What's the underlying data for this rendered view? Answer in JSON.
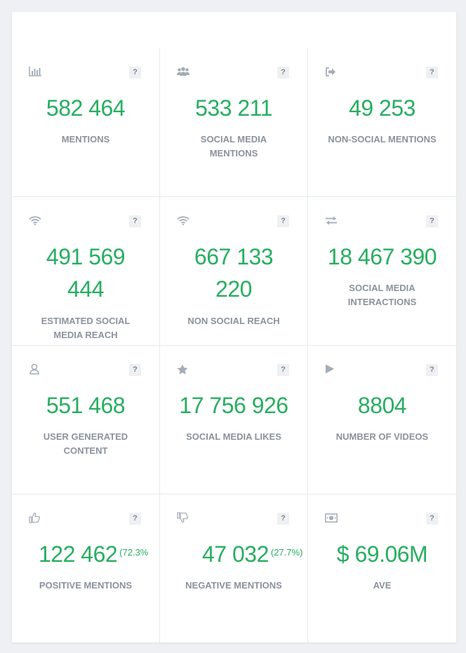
{
  "colors": {
    "accent": "#27ae60",
    "label": "#8a929c",
    "icon": "#a4acb6"
  },
  "help_label": "?",
  "tiles": [
    {
      "icon": "bar-chart-icon",
      "value": "582 464",
      "pct": "",
      "label": "MENTIONS"
    },
    {
      "icon": "users-icon",
      "value": "533 211",
      "pct": "",
      "label": "SOCIAL MEDIA MENTIONS"
    },
    {
      "icon": "sign-out-icon",
      "value": "49 253",
      "pct": "",
      "label": "NON-SOCIAL MENTIONS"
    },
    {
      "icon": "wifi-icon",
      "value": "491 569 444",
      "pct": "",
      "label": "ESTIMATED SOCIAL MEDIA REACH"
    },
    {
      "icon": "wifi-icon",
      "value": "667 133 220",
      "pct": "",
      "label": "NON SOCIAL REACH"
    },
    {
      "icon": "exchange-icon",
      "value": "18 467 390",
      "pct": "",
      "label": "SOCIAL MEDIA INTERACTIONS"
    },
    {
      "icon": "user-icon",
      "value": "551 468",
      "pct": "",
      "label": "USER GENERATED CONTENT"
    },
    {
      "icon": "star-icon",
      "value": "17 756 926",
      "pct": "",
      "label": "SOCIAL MEDIA LIKES"
    },
    {
      "icon": "play-icon",
      "value": "8804",
      "pct": "",
      "label": "NUMBER OF VIDEOS"
    },
    {
      "icon": "thumbs-up-icon",
      "value": "122 462",
      "pct": "(72.3%",
      "label": "POSITIVE MENTIONS"
    },
    {
      "icon": "thumbs-down-icon",
      "value": "47 032",
      "pct": "(27.7%)",
      "label": "NEGATIVE MENTIONS"
    },
    {
      "icon": "money-icon",
      "value": "$ 69.06M",
      "pct": "",
      "label": "AVE"
    }
  ]
}
